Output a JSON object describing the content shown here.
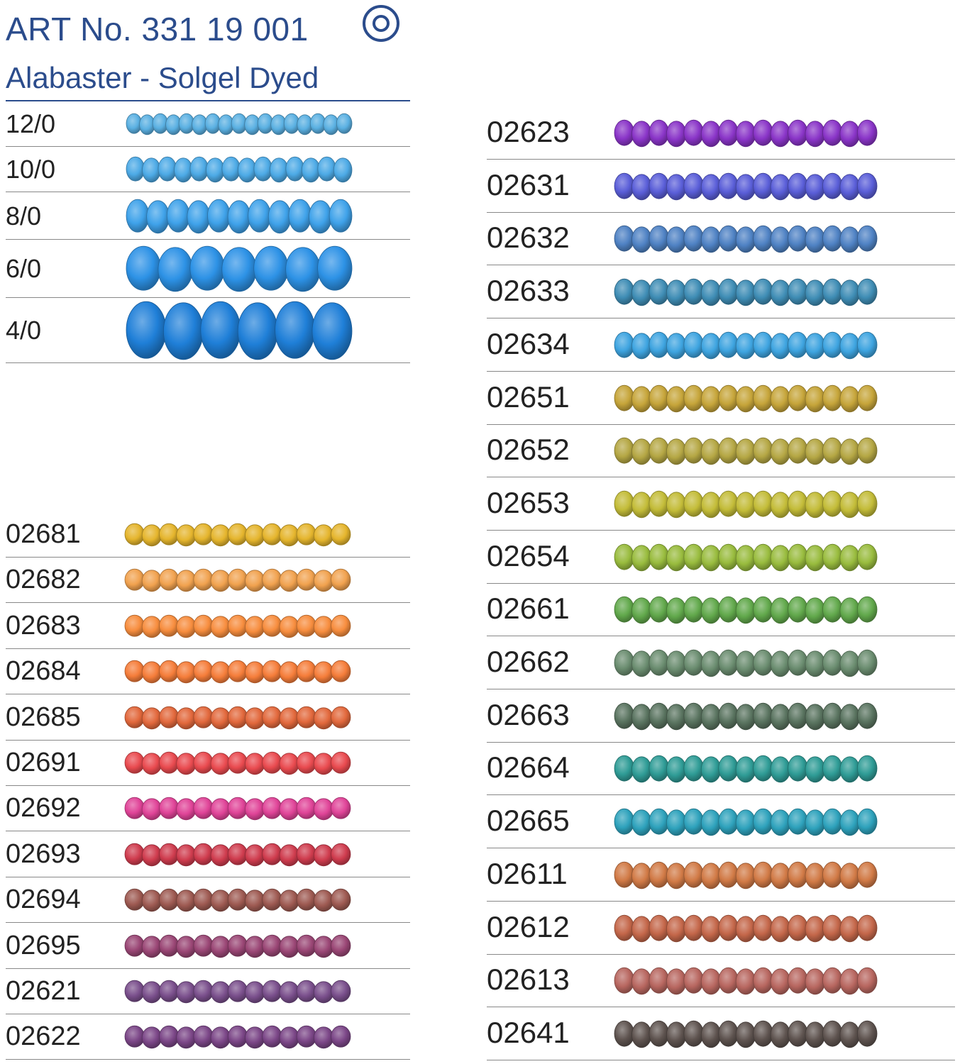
{
  "header": {
    "title": "ART No. 331 19 001",
    "subtitle": "Alabaster - Solgel Dyed",
    "logo_icon": "double-circle-icon",
    "accent_color": "#2b4c8c"
  },
  "sizes": [
    {
      "label": "12/0",
      "color": "#5ab0e2",
      "beads": 17
    },
    {
      "label": "10/0",
      "color": "#4daae6",
      "beads": 14
    },
    {
      "label": "8/0",
      "color": "#3fa2ea",
      "beads": 11
    },
    {
      "label": "6/0",
      "color": "#2d92e6",
      "beads": 7
    },
    {
      "label": "4/0",
      "color": "#1f7fd8",
      "beads": 6
    }
  ],
  "left_colors": [
    {
      "label": "02681",
      "color": "#e5b52d"
    },
    {
      "label": "02682",
      "color": "#f1a24f"
    },
    {
      "label": "02683",
      "color": "#f78d3e"
    },
    {
      "label": "02684",
      "color": "#f57d3a"
    },
    {
      "label": "02685",
      "color": "#e2683c"
    },
    {
      "label": "02691",
      "color": "#e94a4f"
    },
    {
      "label": "02692",
      "color": "#e04498"
    },
    {
      "label": "02693",
      "color": "#cf3c4e"
    },
    {
      "label": "02694",
      "color": "#9e5a52"
    },
    {
      "label": "02695",
      "color": "#9a4675"
    },
    {
      "label": "02621",
      "color": "#7a4f8c"
    },
    {
      "label": "02622",
      "color": "#7b4687"
    }
  ],
  "right_colors": [
    {
      "label": "02623",
      "color": "#8a35c8"
    },
    {
      "label": "02631",
      "color": "#5a5ed8"
    },
    {
      "label": "02632",
      "color": "#4f82c4"
    },
    {
      "label": "02633",
      "color": "#3f8db5"
    },
    {
      "label": "02634",
      "color": "#3ea4e0"
    },
    {
      "label": "02651",
      "color": "#c6a53a"
    },
    {
      "label": "02652",
      "color": "#b5a744"
    },
    {
      "label": "02653",
      "color": "#c3bc38"
    },
    {
      "label": "02654",
      "color": "#99bc3e"
    },
    {
      "label": "02661",
      "color": "#62a94c"
    },
    {
      "label": "02662",
      "color": "#6b8d70"
    },
    {
      "label": "02663",
      "color": "#5a7460"
    },
    {
      "label": "02664",
      "color": "#2f9c96"
    },
    {
      "label": "02665",
      "color": "#2ea2bc"
    },
    {
      "label": "02611",
      "color": "#d17a46"
    },
    {
      "label": "02612",
      "color": "#c4674a"
    },
    {
      "label": "02613",
      "color": "#b86760"
    },
    {
      "label": "02641",
      "color": "#5f5450"
    }
  ]
}
